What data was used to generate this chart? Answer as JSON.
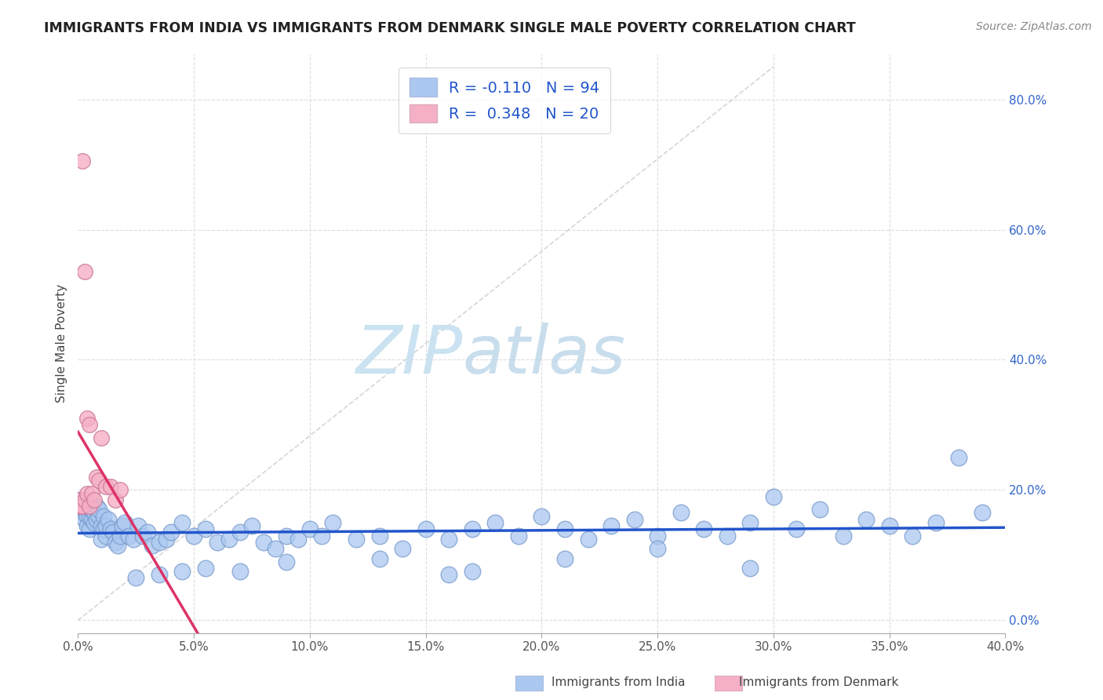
{
  "title": "IMMIGRANTS FROM INDIA VS IMMIGRANTS FROM DENMARK SINGLE MALE POVERTY CORRELATION CHART",
  "source": "Source: ZipAtlas.com",
  "ylabel": "Single Male Poverty",
  "legend_india": "Immigrants from India",
  "legend_denmark": "Immigrants from Denmark",
  "xlim": [
    0.0,
    0.4
  ],
  "ylim": [
    -0.02,
    0.87
  ],
  "plot_ylim": [
    0.0,
    0.85
  ],
  "india_color": "#aac8f0",
  "india_edge": "#7799cc",
  "denmark_color": "#f5b0c5",
  "denmark_edge": "#cc7799",
  "india_line_color": "#2255cc",
  "denmark_line_color": "#dd3366",
  "ref_line_color": "#cccccc",
  "R_india": -0.11,
  "N_india": 94,
  "R_denmark": 0.348,
  "N_denmark": 20,
  "watermark_zip": "ZIP",
  "watermark_atlas": "atlas",
  "grid_color": "#dddddd",
  "title_color": "#222222",
  "tick_color": "#555555",
  "india_x": [
    0.001,
    0.002,
    0.003,
    0.003,
    0.004,
    0.004,
    0.005,
    0.005,
    0.005,
    0.006,
    0.006,
    0.007,
    0.007,
    0.008,
    0.008,
    0.009,
    0.009,
    0.01,
    0.01,
    0.011,
    0.011,
    0.012,
    0.012,
    0.013,
    0.014,
    0.015,
    0.016,
    0.017,
    0.018,
    0.019,
    0.02,
    0.022,
    0.024,
    0.026,
    0.028,
    0.03,
    0.032,
    0.035,
    0.038,
    0.04,
    0.045,
    0.05,
    0.055,
    0.06,
    0.065,
    0.07,
    0.075,
    0.08,
    0.085,
    0.09,
    0.095,
    0.1,
    0.105,
    0.11,
    0.12,
    0.13,
    0.14,
    0.15,
    0.16,
    0.17,
    0.18,
    0.19,
    0.2,
    0.21,
    0.22,
    0.23,
    0.24,
    0.25,
    0.26,
    0.27,
    0.28,
    0.29,
    0.3,
    0.31,
    0.32,
    0.33,
    0.34,
    0.35,
    0.36,
    0.37,
    0.21,
    0.13,
    0.09,
    0.055,
    0.045,
    0.035,
    0.025,
    0.07,
    0.17,
    0.25,
    0.29,
    0.16,
    0.38,
    0.39
  ],
  "india_y": [
    0.185,
    0.165,
    0.175,
    0.155,
    0.16,
    0.145,
    0.14,
    0.16,
    0.17,
    0.155,
    0.17,
    0.15,
    0.165,
    0.155,
    0.175,
    0.16,
    0.17,
    0.125,
    0.145,
    0.14,
    0.16,
    0.13,
    0.145,
    0.155,
    0.14,
    0.135,
    0.12,
    0.115,
    0.13,
    0.145,
    0.15,
    0.13,
    0.125,
    0.145,
    0.13,
    0.135,
    0.115,
    0.12,
    0.125,
    0.135,
    0.15,
    0.13,
    0.14,
    0.12,
    0.125,
    0.135,
    0.145,
    0.12,
    0.11,
    0.13,
    0.125,
    0.14,
    0.13,
    0.15,
    0.125,
    0.13,
    0.11,
    0.14,
    0.125,
    0.14,
    0.15,
    0.13,
    0.16,
    0.14,
    0.125,
    0.145,
    0.155,
    0.13,
    0.165,
    0.14,
    0.13,
    0.15,
    0.19,
    0.14,
    0.17,
    0.13,
    0.155,
    0.145,
    0.13,
    0.15,
    0.095,
    0.095,
    0.09,
    0.08,
    0.075,
    0.07,
    0.065,
    0.075,
    0.075,
    0.11,
    0.08,
    0.07,
    0.25,
    0.165
  ],
  "denmark_x": [
    0.0005,
    0.001,
    0.001,
    0.002,
    0.002,
    0.003,
    0.003,
    0.004,
    0.004,
    0.005,
    0.005,
    0.006,
    0.007,
    0.008,
    0.009,
    0.01,
    0.012,
    0.014,
    0.016,
    0.018
  ],
  "denmark_y": [
    0.175,
    0.185,
    0.175,
    0.705,
    0.175,
    0.535,
    0.185,
    0.31,
    0.195,
    0.3,
    0.175,
    0.195,
    0.185,
    0.22,
    0.215,
    0.28,
    0.205,
    0.205,
    0.185,
    0.2
  ]
}
